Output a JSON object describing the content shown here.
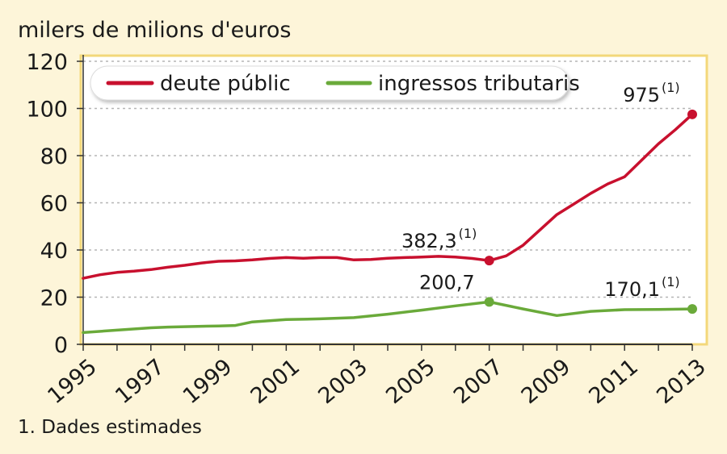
{
  "chart_data": {
    "type": "line",
    "ylabel": "milers de milions d'euros",
    "ylim": [
      0,
      120
    ],
    "yticks": [
      "0",
      "20",
      "40",
      "60",
      "80",
      "100",
      "120"
    ],
    "xticks": [
      "1995",
      "1997",
      "1999",
      "2001",
      "2003",
      "2005",
      "2007",
      "2009",
      "2011",
      "2013"
    ],
    "grid": true,
    "legend_position": "top",
    "footnote": "1. Dades estimades",
    "series": [
      {
        "name": "deute públic",
        "color": "#c8102e",
        "points": [
          [
            1995,
            28
          ],
          [
            1995.5,
            29.5
          ],
          [
            1996,
            30.5
          ],
          [
            1996.5,
            31
          ],
          [
            1997,
            31.7
          ],
          [
            1997.5,
            32.7
          ],
          [
            1998,
            33.5
          ],
          [
            1998.5,
            34.5
          ],
          [
            1999,
            35.2
          ],
          [
            1999.5,
            35.4
          ],
          [
            2000,
            35.8
          ],
          [
            2000.5,
            36.4
          ],
          [
            2001,
            36.8
          ],
          [
            2001.5,
            36.5
          ],
          [
            2002,
            36.8
          ],
          [
            2002.5,
            36.8
          ],
          [
            2003,
            35.8
          ],
          [
            2003.5,
            36
          ],
          [
            2004,
            36.5
          ],
          [
            2004.5,
            36.8
          ],
          [
            2005,
            37
          ],
          [
            2005.5,
            37.3
          ],
          [
            2006,
            37
          ],
          [
            2006.5,
            36.4
          ],
          [
            2007,
            35.5
          ],
          [
            2007.5,
            37.5
          ],
          [
            2008,
            42
          ],
          [
            2008.5,
            48.5
          ],
          [
            2009,
            55
          ],
          [
            2009.5,
            59.5
          ],
          [
            2010,
            64
          ],
          [
            2010.5,
            68
          ],
          [
            2011,
            71
          ],
          [
            2011.5,
            78
          ],
          [
            2012,
            85
          ],
          [
            2012.5,
            91
          ],
          [
            2013,
            97.5
          ]
        ]
      },
      {
        "name": "ingressos tributaris",
        "color": "#6aaa3a",
        "points": [
          [
            1995,
            5
          ],
          [
            1996,
            6
          ],
          [
            1997,
            7
          ],
          [
            1997.5,
            7.3
          ],
          [
            1998,
            7.5
          ],
          [
            1999,
            7.8
          ],
          [
            1999.5,
            8
          ],
          [
            2000,
            9.5
          ],
          [
            2001,
            10.5
          ],
          [
            2002,
            10.8
          ],
          [
            2003,
            11.3
          ],
          [
            2004,
            12.8
          ],
          [
            2005,
            14.5
          ],
          [
            2006,
            16.3
          ],
          [
            2007,
            18
          ],
          [
            2008,
            15
          ],
          [
            2009,
            12.2
          ],
          [
            2010,
            14
          ],
          [
            2011,
            14.7
          ],
          [
            2012,
            14.8
          ],
          [
            2013,
            15
          ]
        ]
      }
    ],
    "annotations": [
      {
        "series": "deute públic",
        "x": 2007,
        "y": 35.5,
        "text": "382,3",
        "sup": "(1)"
      },
      {
        "series": "deute públic",
        "x": 2013,
        "y": 97.5,
        "text": "975",
        "sup": "(1)"
      },
      {
        "series": "ingressos tributaris",
        "x": 2007,
        "y": 18,
        "text": "200,7",
        "sup": ""
      },
      {
        "series": "ingressos tributaris",
        "x": 2013,
        "y": 15,
        "text": "170,1",
        "sup": "(1)"
      }
    ]
  },
  "frame_color": "#f3d87a",
  "background_color": "#fdf5d9",
  "plot_background": "#ffffff"
}
